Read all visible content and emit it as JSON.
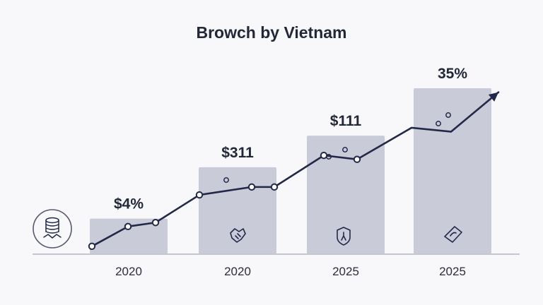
{
  "chart_data": {
    "type": "bar",
    "title": "Browch by Vietnam",
    "categories": [
      "2020",
      "2020",
      "2025",
      "2025"
    ],
    "values": [
      4.5,
      11,
      15,
      21
    ],
    "data_labels": [
      "$4%",
      "$311",
      "$111",
      "35%"
    ],
    "ylim": [
      0,
      21
    ],
    "xlabel": "",
    "ylabel": "",
    "grid": false,
    "legend": "none",
    "trend_line": {
      "type": "line",
      "values": [
        1,
        3.5,
        4,
        7.5,
        8.5,
        8.5,
        12.5,
        12,
        16,
        15.5,
        20.5
      ],
      "arrow": true
    },
    "colors": {
      "bar": "#c9cbd9",
      "line": "#222848",
      "text": "#232838",
      "axis": "#c5c7d0",
      "background": "#f8f8fa"
    },
    "icons": [
      "coin-stack-icon",
      "handshake-icon",
      "shield-icon",
      "money-icon"
    ]
  }
}
